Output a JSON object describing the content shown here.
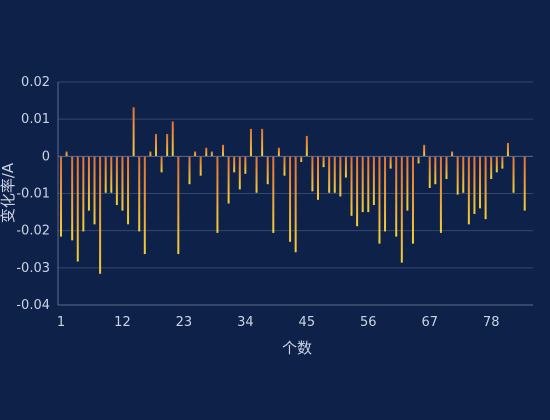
{
  "chart_data": {
    "type": "bar",
    "title": "",
    "xlabel": "个数",
    "ylabel": "变化率/A",
    "ylim": [
      -0.04,
      0.02
    ],
    "yticks": [
      0.02,
      0.01,
      0,
      -0.01,
      -0.02,
      -0.03,
      -0.04
    ],
    "ytick_labels": [
      "0.02",
      "0.01",
      "0",
      "-0.01",
      "-0.02",
      "-0.03",
      "-0.04"
    ],
    "xticks": [
      1,
      12,
      23,
      34,
      45,
      56,
      67,
      78
    ],
    "grid": true,
    "legend": "none",
    "bar_gradient": {
      "top": "#e46f35",
      "bottom": "#f2cf37"
    },
    "colors": {
      "background": "#0e2148",
      "grid": "#34476e",
      "text": "#c9d3e6"
    },
    "x": [
      1,
      2,
      3,
      4,
      5,
      6,
      7,
      8,
      9,
      10,
      11,
      12,
      13,
      14,
      15,
      16,
      17,
      18,
      19,
      20,
      21,
      22,
      23,
      24,
      25,
      26,
      27,
      28,
      29,
      30,
      31,
      32,
      33,
      34,
      35,
      36,
      37,
      38,
      39,
      40,
      41,
      42,
      43,
      44,
      45,
      46,
      47,
      48,
      49,
      50,
      51,
      52,
      53,
      54,
      55,
      56,
      57,
      58,
      59,
      60,
      61,
      62,
      63,
      64,
      65,
      66,
      67,
      68,
      69,
      70,
      71,
      72,
      73,
      74,
      75,
      76,
      77,
      78,
      79,
      80,
      81,
      82,
      83,
      84
    ],
    "values": [
      -0.0216,
      0.0013,
      -0.0226,
      -0.0283,
      -0.0202,
      -0.0146,
      -0.0183,
      -0.0316,
      -0.0098,
      -0.0098,
      -0.0131,
      -0.0146,
      -0.0183,
      0.0132,
      -0.0202,
      -0.0263,
      0.0013,
      0.006,
      -0.0043,
      0.006,
      0.0094,
      -0.0263,
      0.0,
      -0.0075,
      0.0013,
      -0.0052,
      0.0023,
      0.0013,
      -0.0206,
      0.0031,
      -0.0127,
      -0.0043,
      -0.0089,
      -0.0047,
      0.0074,
      -0.0098,
      0.0074,
      -0.0075,
      -0.0206,
      0.0023,
      -0.0052,
      -0.023,
      -0.0258,
      -0.0015,
      0.0055,
      -0.0094,
      -0.0117,
      -0.0029,
      -0.0098,
      -0.0098,
      -0.0108,
      -0.0057,
      -0.016,
      -0.0188,
      -0.015,
      -0.015,
      -0.0131,
      -0.0235,
      -0.0202,
      -0.0033,
      -0.0216,
      -0.0286,
      -0.0146,
      -0.0235,
      -0.0019,
      0.0031,
      -0.0085,
      -0.0075,
      -0.0206,
      -0.0061,
      0.0013,
      -0.0103,
      -0.0098,
      -0.0183,
      -0.0155,
      -0.014,
      -0.0169,
      -0.0061,
      -0.0043,
      -0.0033,
      0.0036,
      -0.0098,
      0.0,
      -0.0146
    ]
  }
}
